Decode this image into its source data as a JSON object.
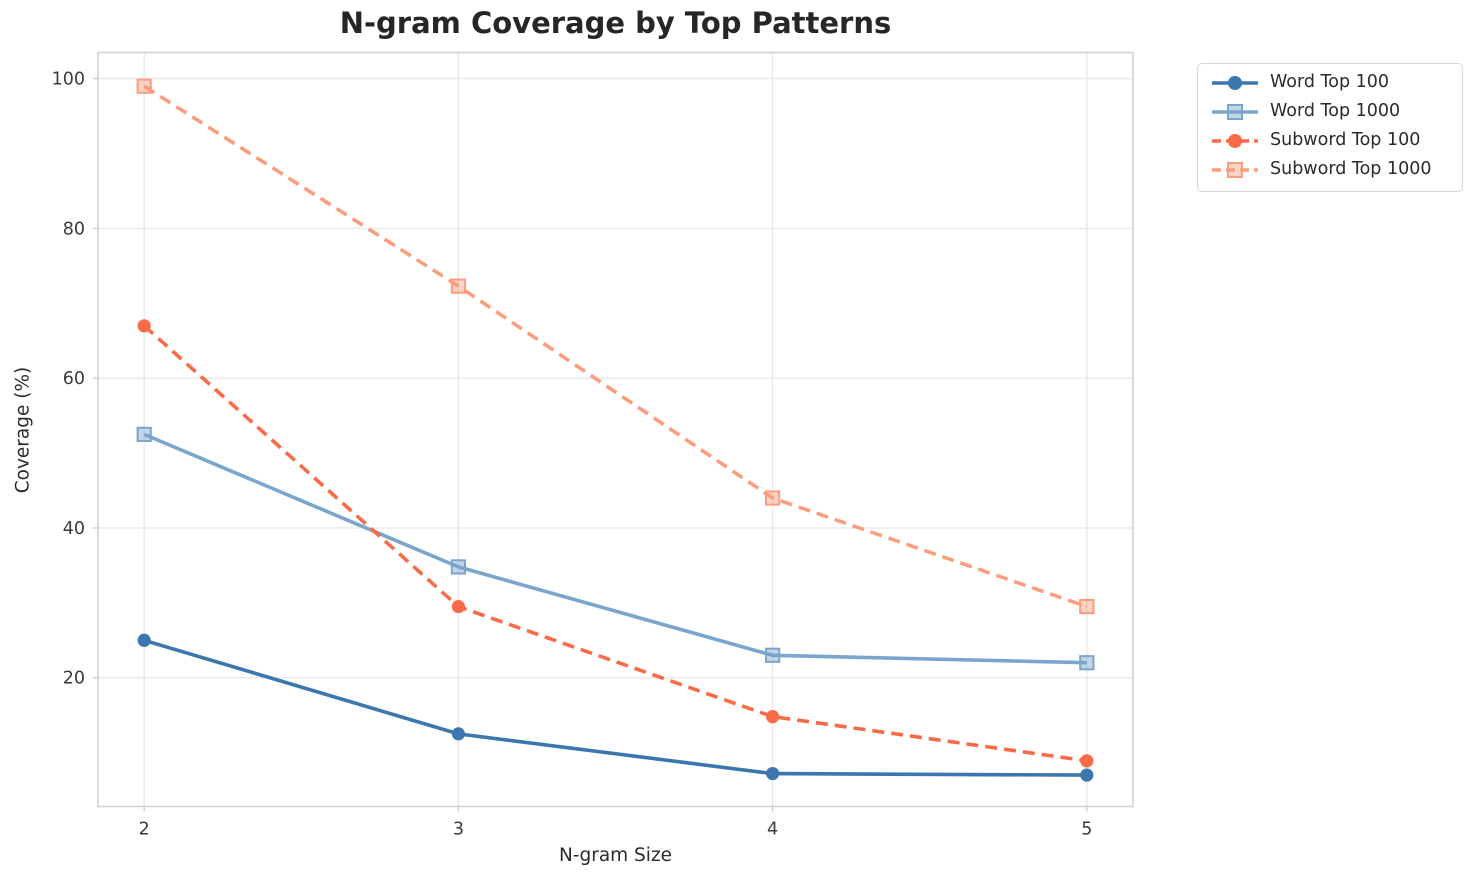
{
  "title": "N-gram Coverage by Top Patterns",
  "chart_data": {
    "type": "line",
    "title": "N-gram Coverage by Top Patterns",
    "xlabel": "N-gram Size",
    "ylabel": "Coverage (%)",
    "x": [
      2,
      3,
      4,
      5
    ],
    "categories": [
      "2",
      "3",
      "4",
      "5"
    ],
    "x_ticks": [
      2,
      3,
      4,
      5
    ],
    "y_ticks": [
      20,
      40,
      60,
      80,
      100
    ],
    "y_tick_labels": [
      "20",
      "40",
      "60",
      "80",
      "100"
    ],
    "xlim": [
      1.853,
      5.147
    ],
    "ylim": [
      2.8,
      103.5
    ],
    "grid": true,
    "legend_position": "upper right outside plot",
    "series": [
      {
        "name": "Word Top 100",
        "values": [
          25.0,
          12.5,
          7.2,
          7.0
        ],
        "color": "#3b76ae",
        "line_style": "solid",
        "marker": "circle"
      },
      {
        "name": "Word Top 1000",
        "values": [
          52.5,
          34.8,
          23.0,
          22.0
        ],
        "color": "#7aa5cd",
        "line_style": "solid",
        "marker": "square"
      },
      {
        "name": "Subword Top 100",
        "values": [
          67.0,
          29.5,
          14.8,
          8.9
        ],
        "color": "#f86b46",
        "line_style": "dashed",
        "marker": "circle"
      },
      {
        "name": "Subword Top 1000",
        "values": [
          99.0,
          72.3,
          44.0,
          29.5
        ],
        "color": "#fb9d7e",
        "line_style": "dashed",
        "marker": "square"
      }
    ],
    "style_colors": {
      "grid": "#e8e8e8",
      "spine": "#d2d2d2",
      "tick": "#cccccc",
      "tick_label": "#3a3a3a",
      "title_text": "#262626"
    }
  }
}
